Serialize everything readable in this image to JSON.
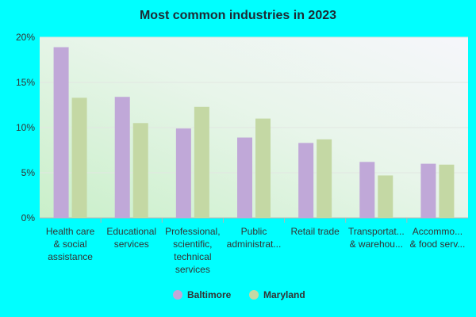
{
  "chart_data": {
    "type": "bar",
    "title": "Most common industries in 2023",
    "xlabel": "",
    "ylabel": "",
    "ylim": [
      0,
      20
    ],
    "yticks": [
      0,
      5,
      10,
      15,
      20
    ],
    "ytick_labels": [
      "0%",
      "5%",
      "10%",
      "15%",
      "20%"
    ],
    "categories": [
      [
        "Health care",
        "& social",
        "assistance"
      ],
      [
        "Educational",
        "services"
      ],
      [
        "Professional,",
        "scientific,",
        "technical",
        "services"
      ],
      [
        "Public",
        "administrat..."
      ],
      [
        "Retail trade"
      ],
      [
        "Transportat...",
        "& warehou..."
      ],
      [
        "Accommo...",
        "& food serv..."
      ]
    ],
    "series": [
      {
        "name": "Baltimore",
        "color": "#c0a8d8",
        "values": [
          18.9,
          13.4,
          9.9,
          8.9,
          8.3,
          6.2,
          6.0
        ]
      },
      {
        "name": "Maryland",
        "color": "#c4d8a4",
        "values": [
          13.3,
          10.5,
          12.3,
          11.0,
          8.7,
          4.7,
          5.9
        ]
      }
    ],
    "grid": true,
    "legend": "bottom-center"
  }
}
